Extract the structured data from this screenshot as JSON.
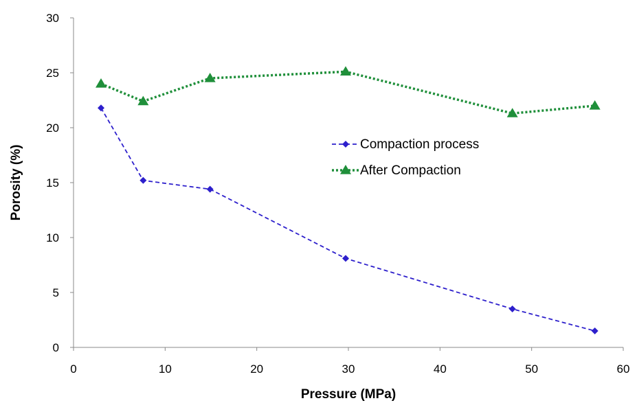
{
  "chart_data": {
    "type": "line",
    "title": "",
    "xlabel": "Pressure (MPa)",
    "ylabel": "Porosity (%)",
    "xlim": [
      0,
      60
    ],
    "ylim": [
      0,
      30
    ],
    "xticks": [
      "0",
      "10",
      "20",
      "30",
      "40",
      "50",
      "60"
    ],
    "yticks": [
      "0",
      "5",
      "10",
      "15",
      "20",
      "25",
      "30"
    ],
    "grid": false,
    "legend_position": "right-center",
    "series": [
      {
        "name": "Compaction process",
        "color": "#2d1fcc",
        "marker": "diamond",
        "line_style": "dashed",
        "x": [
          3,
          7.6,
          14.9,
          29.7,
          47.9,
          56.9
        ],
        "y": [
          21.8,
          15.2,
          14.4,
          8.1,
          3.5,
          1.5
        ]
      },
      {
        "name": "After Compaction",
        "color": "#1f8f3a",
        "marker": "triangle",
        "line_style": "dotted",
        "x": [
          3,
          7.6,
          14.9,
          29.7,
          47.9,
          56.9
        ],
        "y": [
          24,
          22.4,
          24.5,
          25.1,
          21.3,
          22
        ]
      }
    ]
  }
}
